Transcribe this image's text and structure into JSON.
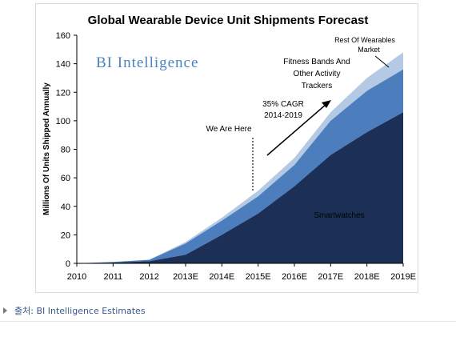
{
  "chart_data": {
    "type": "area",
    "stacked": true,
    "title": "Global Wearable Device Unit Shipments Forecast",
    "ylabel": "Millions Of Units Shipped Annually",
    "xlabel": "",
    "x": [
      "2010",
      "2011",
      "2012",
      "2013E",
      "2014E",
      "2015E",
      "2016E",
      "2017E",
      "2018E",
      "2019E"
    ],
    "ylim": [
      0,
      160
    ],
    "yticks": [
      0,
      20,
      40,
      60,
      80,
      100,
      120,
      140,
      160
    ],
    "grid": false,
    "series": [
      {
        "name": "Smartwatches",
        "values": [
          0,
          0.5,
          1.5,
          6,
          20,
          35,
          54,
          76,
          92,
          106
        ],
        "color": "#1b2f57"
      },
      {
        "name": "Fitness Bands And Other Activity Trackers",
        "values": [
          0,
          0.5,
          1,
          8,
          10,
          12,
          15,
          24,
          29,
          30
        ],
        "color": "#4c7ebd"
      },
      {
        "name": "Rest Of Wearables Market",
        "values": [
          0,
          0,
          0,
          1,
          2,
          4,
          5,
          6,
          9,
          12
        ],
        "color": "#b3c9e4"
      }
    ],
    "annotations": {
      "brand": "BI Intelligence",
      "we_are_here": "We Are Here",
      "cagr_line1": "35% CAGR",
      "cagr_line2": "2014-2019",
      "rest_line1": "Rest Of Wearables",
      "rest_line2": "Market",
      "fitness_line1": "Fitness Bands And",
      "fitness_line2": "Other Activity",
      "fitness_line3": "Trackers",
      "smartwatches": "Smartwatches"
    }
  },
  "source": {
    "text": "출처: BI Intelligence Estimates"
  },
  "colors": {
    "smartwatches": "#1b2f57",
    "fitness": "#4c7ebd",
    "rest": "#b3c9e4",
    "brand": "#4a82c0",
    "source_text": "#3a5a8c"
  }
}
